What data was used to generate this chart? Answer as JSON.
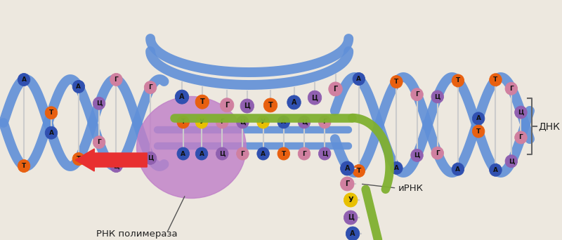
{
  "background_color": "#ede8df",
  "labels": {
    "dnk": "ДНК",
    "mrna": "иРНК",
    "polymerase": "РНК полимераза"
  },
  "colors": {
    "dna_strand": "#6090d8",
    "mrna_strand": "#80b030",
    "polymerase": "#c080c8",
    "T_orange": "#e86010",
    "A_blue": "#3050b0",
    "G_pink": "#d080a0",
    "C_purple": "#9060b0",
    "U_yellow": "#e8c000",
    "arrow_red": "#e83030",
    "connector": "#cccccc",
    "text_color": "#222222",
    "bracket": "#666666"
  },
  "figsize": [
    8.0,
    3.42
  ],
  "dpi": 100
}
